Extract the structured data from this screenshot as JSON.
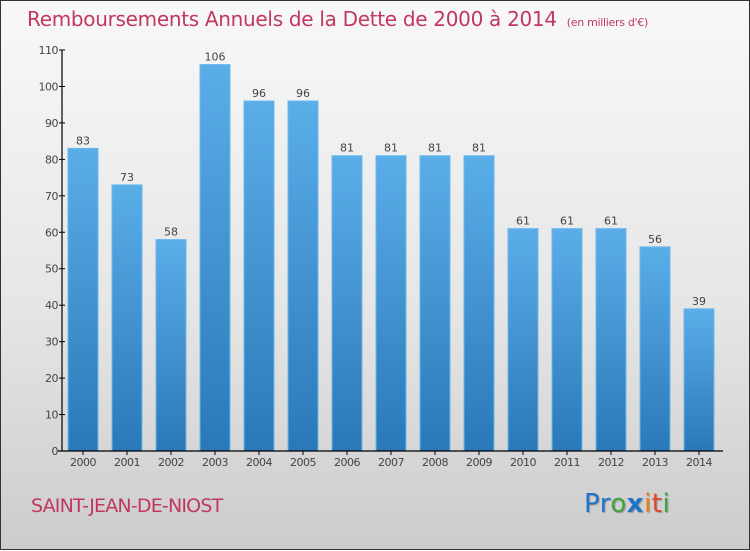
{
  "header": {
    "title": "Remboursements Annuels de la Dette de 2000 à 2014",
    "unit_note": "(en milliers d'€)"
  },
  "footer": {
    "commune": "SAINT-JEAN-DE-NIOST",
    "logo": {
      "letters": [
        {
          "char": "P",
          "color": "#1f75c9"
        },
        {
          "char": "r",
          "color": "#1f75c9"
        },
        {
          "char": "o",
          "color": "#3ea53a"
        },
        {
          "char": "x",
          "color": "#1f75c9"
        },
        {
          "char": "i",
          "color": "#f07c00"
        },
        {
          "char": "t",
          "color": "#e2462b"
        },
        {
          "char": "i",
          "color": "#3ea53a"
        }
      ]
    }
  },
  "colors": {
    "title": "#c0385f",
    "bar_top": "#5aaee8",
    "bar_bottom": "#2a78b8",
    "axis": "#000000",
    "label": "#444444"
  },
  "chart_data": {
    "type": "bar",
    "title": "Remboursements Annuels de la Dette de 2000 à 2014",
    "subtitle": "(en milliers d'€)",
    "xlabel": "",
    "ylabel": "",
    "categories": [
      "2000",
      "2001",
      "2002",
      "2003",
      "2004",
      "2005",
      "2006",
      "2007",
      "2008",
      "2009",
      "2010",
      "2011",
      "2012",
      "2013",
      "2014"
    ],
    "values": [
      83,
      73,
      58,
      106,
      96,
      96,
      81,
      81,
      81,
      81,
      61,
      61,
      61,
      56,
      39
    ],
    "ylim": [
      0,
      110
    ],
    "yticks": [
      0,
      10,
      20,
      30,
      40,
      50,
      60,
      70,
      80,
      90,
      100,
      110
    ],
    "grid": false,
    "legend": "none",
    "data_labels": true
  }
}
